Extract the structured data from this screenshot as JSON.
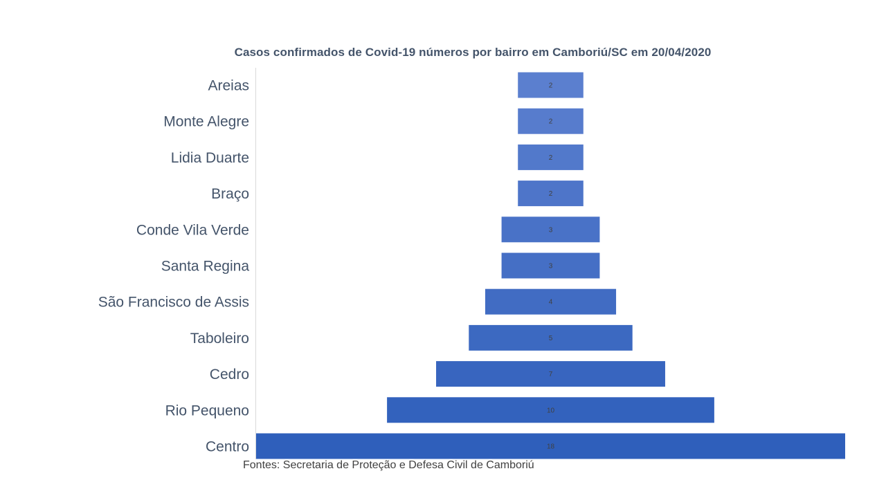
{
  "chart_data": {
    "type": "bar",
    "orientation": "horizontal",
    "layout": "centered-funnel",
    "title": "Casos confirmados  de Covid-19  números  por  bairro  em  Camboriú/SC  em  20/04/2020",
    "categories": [
      "Areias",
      "Monte Alegre",
      "Lidia Duarte",
      "Braço",
      "Conde Vila Verde",
      "Santa Regina",
      "São Francisco de Assis",
      "Taboleiro",
      "Cedro",
      "Rio Pequeno",
      "Centro"
    ],
    "values": [
      2,
      2,
      2,
      2,
      3,
      3,
      4,
      5,
      7,
      10,
      18
    ],
    "xlim": [
      0,
      18
    ],
    "grid": false,
    "legend": "none",
    "colors": {
      "bar_light": "#5b7fcf",
      "bar_dark": "#2f5fbb",
      "axis": "#d9d9d9"
    }
  },
  "footer": {
    "source": "Fontes: Secretaria de Proteção e Defesa Civil de Camboriú"
  }
}
